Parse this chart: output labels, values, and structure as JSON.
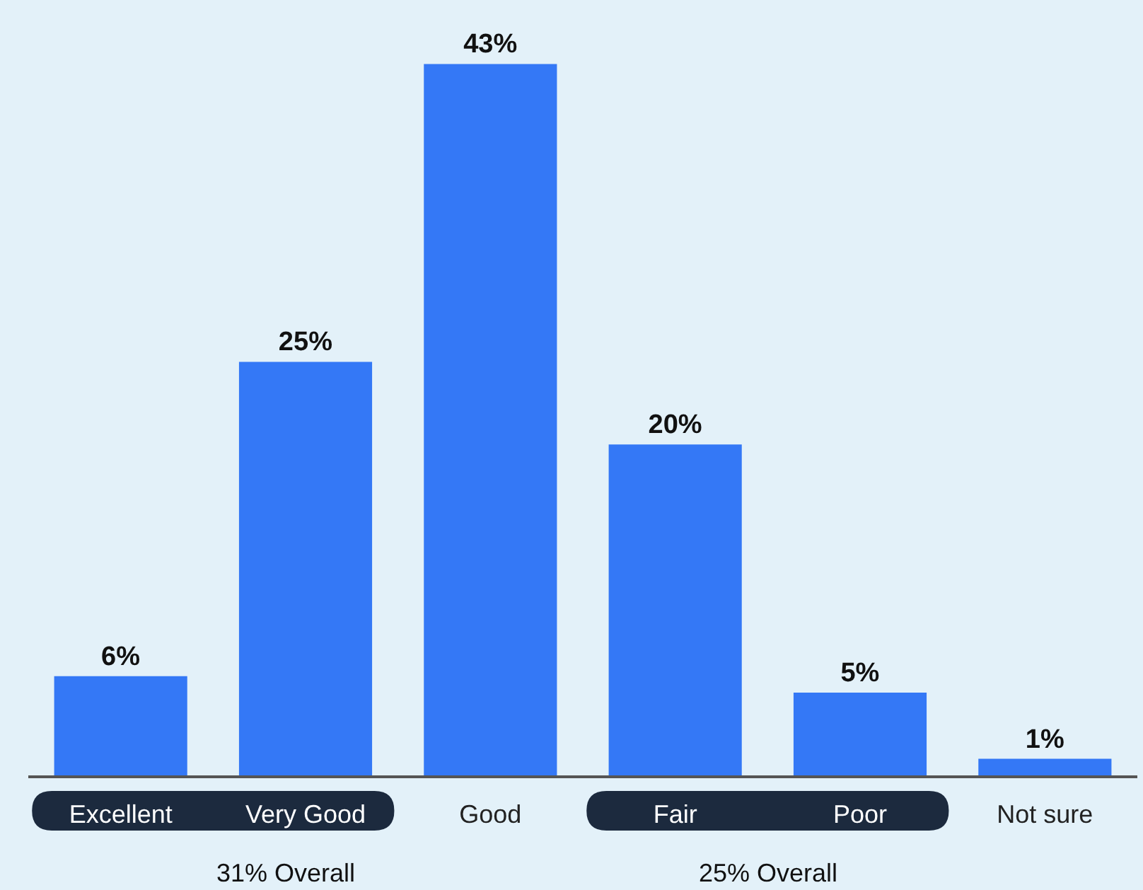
{
  "chart_data": {
    "type": "bar",
    "categories": [
      "Excellent",
      "Very Good",
      "Good",
      "Fair",
      "Poor",
      "Not sure"
    ],
    "values": [
      6,
      25,
      43,
      20,
      5,
      1
    ],
    "color": "#3478f6",
    "value_labels": [
      "6%",
      "25%",
      "43%",
      "20%",
      "5%",
      "1%"
    ],
    "grid": false,
    "legend": false,
    "annotations": [
      "31% Overall",
      "25% Overall"
    ]
  }
}
